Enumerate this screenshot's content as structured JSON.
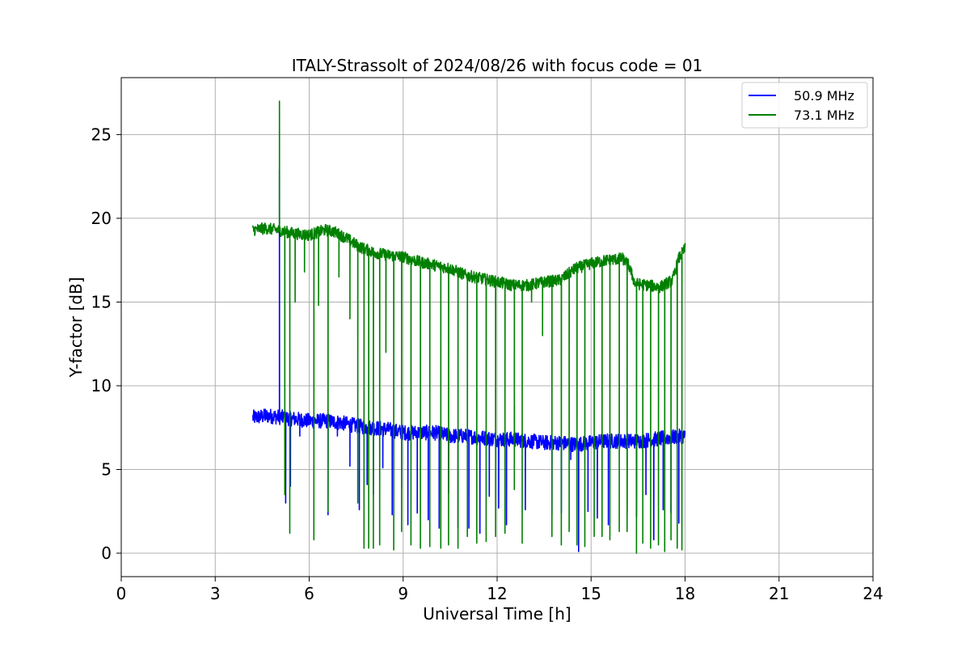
{
  "chart_data": {
    "type": "line",
    "title": "ITALY-Strassolt of 2024/08/26 with focus code = 01",
    "xlabel": "Universal Time [h]",
    "ylabel": "Y-factor [dB]",
    "xlim": [
      0,
      24
    ],
    "ylim": [
      -1.4,
      28.4
    ],
    "xticks": [
      0,
      3,
      6,
      9,
      12,
      15,
      18,
      21,
      24
    ],
    "yticks": [
      0,
      5,
      10,
      15,
      20,
      25
    ],
    "grid": true,
    "legend_position": "top-right",
    "series": [
      {
        "name": "50.9 MHz",
        "color": "#0000ff",
        "base": [
          [
            4.2,
            8.1
          ],
          [
            4.7,
            8.2
          ],
          [
            5.2,
            8.1
          ],
          [
            5.6,
            8.0
          ],
          [
            6.0,
            7.9
          ],
          [
            6.5,
            7.9
          ],
          [
            7.0,
            7.8
          ],
          [
            7.5,
            7.6
          ],
          [
            8.0,
            7.5
          ],
          [
            8.5,
            7.4
          ],
          [
            9.0,
            7.2
          ],
          [
            9.5,
            7.2
          ],
          [
            10.0,
            7.2
          ],
          [
            10.5,
            7.0
          ],
          [
            11.0,
            7.0
          ],
          [
            11.5,
            6.9
          ],
          [
            12.0,
            6.8
          ],
          [
            12.5,
            6.8
          ],
          [
            13.0,
            6.7
          ],
          [
            13.5,
            6.6
          ],
          [
            14.0,
            6.6
          ],
          [
            14.5,
            6.5
          ],
          [
            15.0,
            6.6
          ],
          [
            15.5,
            6.7
          ],
          [
            16.0,
            6.7
          ],
          [
            16.5,
            6.7
          ],
          [
            17.0,
            6.8
          ],
          [
            17.5,
            6.9
          ],
          [
            18.0,
            7.0
          ]
        ],
        "noise": 0.45,
        "spikes": [
          [
            4.6,
            8.6
          ],
          [
            5.05,
            22.9
          ],
          [
            5.25,
            3.0
          ],
          [
            5.4,
            4.0
          ],
          [
            5.7,
            7.0
          ],
          [
            6.15,
            6.8
          ],
          [
            6.6,
            2.3
          ],
          [
            6.9,
            7.0
          ],
          [
            7.3,
            5.2
          ],
          [
            7.6,
            2.6
          ],
          [
            7.85,
            4.1
          ],
          [
            8.05,
            3.5
          ],
          [
            8.35,
            5.1
          ],
          [
            8.65,
            2.3
          ],
          [
            8.95,
            3.9
          ],
          [
            9.15,
            1.7
          ],
          [
            9.45,
            2.4
          ],
          [
            9.8,
            2.0
          ],
          [
            10.15,
            1.5
          ],
          [
            10.45,
            3.6
          ],
          [
            10.75,
            1.5
          ],
          [
            11.1,
            1.5
          ],
          [
            11.45,
            1.2
          ],
          [
            11.75,
            3.4
          ],
          [
            12.05,
            2.7
          ],
          [
            12.3,
            1.7
          ],
          [
            12.55,
            8.8
          ],
          [
            12.9,
            2.6
          ],
          [
            13.35,
            6.4
          ],
          [
            13.75,
            2.3
          ],
          [
            14.05,
            2.4
          ],
          [
            14.35,
            5.6
          ],
          [
            14.6,
            0.1
          ],
          [
            14.9,
            2.5
          ],
          [
            15.2,
            2.1
          ],
          [
            15.55,
            1.7
          ],
          [
            15.85,
            6.4
          ],
          [
            16.15,
            2.4
          ],
          [
            16.45,
            2.2
          ],
          [
            16.75,
            3.5
          ],
          [
            17.0,
            0.8
          ],
          [
            17.3,
            2.6
          ],
          [
            17.55,
            2.4
          ],
          [
            17.8,
            1.8
          ]
        ]
      },
      {
        "name": "73.1 MHz",
        "color": "#008000",
        "base": [
          [
            4.2,
            19.3
          ],
          [
            4.6,
            19.4
          ],
          [
            5.0,
            19.3
          ],
          [
            5.5,
            19.1
          ],
          [
            6.0,
            19.0
          ],
          [
            6.5,
            19.3
          ],
          [
            6.8,
            19.2
          ],
          [
            7.2,
            18.8
          ],
          [
            7.6,
            18.3
          ],
          [
            8.0,
            18.0
          ],
          [
            8.5,
            17.8
          ],
          [
            9.0,
            17.7
          ],
          [
            9.5,
            17.4
          ],
          [
            10.0,
            17.2
          ],
          [
            10.5,
            17.0
          ],
          [
            11.0,
            16.6
          ],
          [
            11.5,
            16.4
          ],
          [
            12.0,
            16.2
          ],
          [
            12.5,
            16.0
          ],
          [
            13.0,
            16.0
          ],
          [
            13.5,
            16.2
          ],
          [
            14.0,
            16.3
          ],
          [
            14.5,
            17.0
          ],
          [
            15.0,
            17.3
          ],
          [
            15.5,
            17.5
          ],
          [
            16.0,
            17.6
          ],
          [
            16.2,
            17.2
          ],
          [
            16.4,
            16.1
          ],
          [
            16.8,
            16.0
          ],
          [
            17.2,
            15.9
          ],
          [
            17.6,
            16.3
          ],
          [
            17.8,
            17.6
          ],
          [
            18.0,
            18.2
          ]
        ],
        "noise": 0.35,
        "spikes": [
          [
            5.05,
            27.0
          ],
          [
            5.22,
            3.5
          ],
          [
            5.38,
            1.2
          ],
          [
            5.55,
            15.0
          ],
          [
            5.85,
            16.8
          ],
          [
            6.15,
            0.8
          ],
          [
            6.3,
            14.8
          ],
          [
            6.6,
            2.5
          ],
          [
            6.95,
            16.5
          ],
          [
            7.3,
            14.0
          ],
          [
            7.55,
            3.0
          ],
          [
            7.75,
            0.3
          ],
          [
            7.9,
            0.3
          ],
          [
            8.05,
            0.3
          ],
          [
            8.25,
            0.5
          ],
          [
            8.45,
            12.0
          ],
          [
            8.7,
            0.2
          ],
          [
            8.95,
            1.3
          ],
          [
            9.25,
            0.5
          ],
          [
            9.55,
            0.3
          ],
          [
            9.85,
            0.4
          ],
          [
            10.2,
            0.3
          ],
          [
            10.45,
            0.5
          ],
          [
            10.75,
            0.3
          ],
          [
            11.05,
            1.0
          ],
          [
            11.35,
            0.6
          ],
          [
            11.65,
            0.7
          ],
          [
            11.95,
            1.0
          ],
          [
            12.25,
            1.2
          ],
          [
            12.55,
            3.8
          ],
          [
            12.8,
            0.6
          ],
          [
            13.1,
            15.0
          ],
          [
            13.45,
            13.0
          ],
          [
            13.75,
            1.0
          ],
          [
            14.05,
            0.5
          ],
          [
            14.3,
            1.3
          ],
          [
            14.55,
            0.5
          ],
          [
            14.8,
            0.4
          ],
          [
            15.1,
            1.0
          ],
          [
            15.35,
            1.0
          ],
          [
            15.6,
            0.8
          ],
          [
            15.9,
            1.3
          ],
          [
            16.15,
            1.3
          ],
          [
            16.45,
            0.0
          ],
          [
            16.65,
            0.6
          ],
          [
            16.9,
            0.3
          ],
          [
            17.15,
            0.5
          ],
          [
            17.35,
            0.1
          ],
          [
            17.55,
            0.8
          ],
          [
            17.75,
            0.3
          ],
          [
            17.9,
            0.2
          ]
        ]
      }
    ]
  }
}
